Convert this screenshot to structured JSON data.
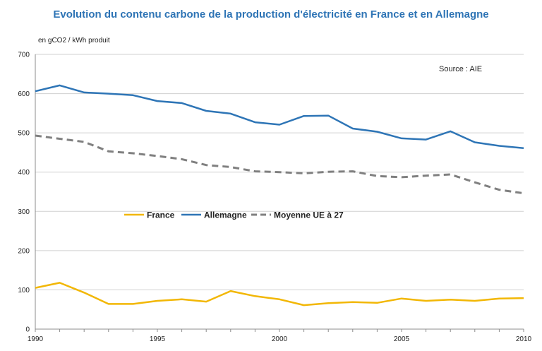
{
  "chart_data": {
    "type": "line",
    "title": "Evolution du contenu carbone de la production d'électricité en France et en Allemagne",
    "ylabel": "en gCO2 / kWh produit",
    "source": "Source : AIE",
    "ylim": [
      0,
      700
    ],
    "yticks": [
      0,
      100,
      200,
      300,
      400,
      500,
      600,
      700
    ],
    "xlim": [
      1990,
      2010
    ],
    "xticks": [
      1990,
      1995,
      2000,
      2005,
      2010
    ],
    "grid": true,
    "legend_position": "middle-left",
    "x": [
      1990,
      1991,
      1992,
      1993,
      1994,
      1995,
      1996,
      1997,
      1998,
      1999,
      2000,
      2001,
      2002,
      2003,
      2004,
      2005,
      2006,
      2007,
      2008,
      2009,
      2010
    ],
    "series": [
      {
        "name": "France",
        "color": "#f2b705",
        "dash": "solid",
        "values": [
          105,
          118,
          93,
          64,
          64,
          72,
          76,
          70,
          97,
          84,
          76,
          61,
          66,
          69,
          67,
          78,
          72,
          75,
          72,
          78,
          79
        ]
      },
      {
        "name": "Allemagne",
        "color": "#2e75b6",
        "dash": "solid",
        "values": [
          606,
          621,
          603,
          600,
          596,
          581,
          576,
          556,
          549,
          527,
          521,
          543,
          544,
          511,
          503,
          486,
          483,
          504,
          476,
          467,
          461
        ]
      },
      {
        "name": "Moyenne UE à 27",
        "color": "#808080",
        "dash": "dashed",
        "values": [
          493,
          485,
          477,
          453,
          448,
          441,
          433,
          418,
          413,
          402,
          400,
          397,
          401,
          402,
          390,
          387,
          391,
          394,
          374,
          355,
          346
        ]
      }
    ]
  }
}
